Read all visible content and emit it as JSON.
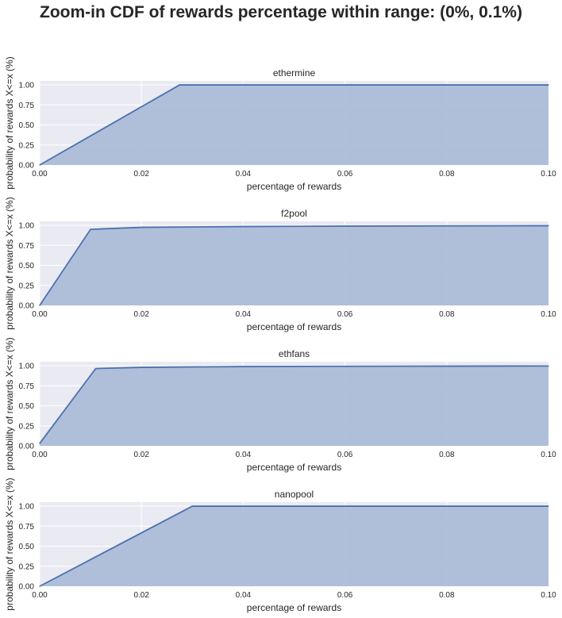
{
  "figure": {
    "suptitle": "Zoom-in CDF of rewards percentage within range: (0%, 0.1%)",
    "colors": {
      "axes_background": "#EAEAF2",
      "grid": "#FFFFFF",
      "line": "#4C72B0",
      "fill": "#A9BAD7"
    }
  },
  "chart_data": [
    {
      "type": "area",
      "title": "ethermine",
      "xlabel": "percentage of rewards",
      "ylabel": "probability of rewards X<=x (%)",
      "xlim": [
        0,
        0.1
      ],
      "ylim": [
        0,
        1.05
      ],
      "xticks": [
        "0.00",
        "0.02",
        "0.04",
        "0.06",
        "0.08",
        "0.10"
      ],
      "yticks": [
        "0.00",
        "0.25",
        "0.50",
        "0.75",
        "1.00"
      ],
      "grid": true,
      "x": [
        0,
        0.0275,
        0.1
      ],
      "y": [
        0,
        1.0,
        1.0
      ]
    },
    {
      "type": "area",
      "title": "f2pool",
      "xlabel": "percentage of rewards",
      "ylabel": "probability of rewards X<=x (%)",
      "xlim": [
        0,
        0.1
      ],
      "ylim": [
        0,
        1.05
      ],
      "xticks": [
        "0.00",
        "0.02",
        "0.04",
        "0.06",
        "0.08",
        "0.10"
      ],
      "yticks": [
        "0.00",
        "0.25",
        "0.50",
        "0.75",
        "1.00"
      ],
      "grid": true,
      "x": [
        0,
        0.01,
        0.02,
        0.04,
        0.06,
        0.08,
        0.1
      ],
      "y": [
        0,
        0.95,
        0.975,
        0.985,
        0.99,
        0.993,
        0.995
      ]
    },
    {
      "type": "area",
      "title": "ethfans",
      "xlabel": "percentage of rewards",
      "ylabel": "probability of rewards X<=x (%)",
      "xlim": [
        0,
        0.1
      ],
      "ylim": [
        0,
        1.05
      ],
      "xticks": [
        "0.00",
        "0.02",
        "0.04",
        "0.06",
        "0.08",
        "0.10"
      ],
      "yticks": [
        "0.00",
        "0.25",
        "0.50",
        "0.75",
        "1.00"
      ],
      "grid": true,
      "x": [
        0,
        0.011,
        0.02,
        0.04,
        0.06,
        0.08,
        0.1
      ],
      "y": [
        0.03,
        0.965,
        0.98,
        0.99,
        0.993,
        0.995,
        0.997
      ]
    },
    {
      "type": "area",
      "title": "nanopool",
      "xlabel": "percentage of rewards",
      "ylabel": "probability of rewards X<=x (%)",
      "xlim": [
        0,
        0.1
      ],
      "ylim": [
        0,
        1.05
      ],
      "xticks": [
        "0.00",
        "0.02",
        "0.04",
        "0.06",
        "0.08",
        "0.10"
      ],
      "yticks": [
        "0.00",
        "0.25",
        "0.50",
        "0.75",
        "1.00"
      ],
      "grid": true,
      "x": [
        0,
        0.03,
        0.1
      ],
      "y": [
        0,
        1.0,
        1.0
      ]
    }
  ]
}
